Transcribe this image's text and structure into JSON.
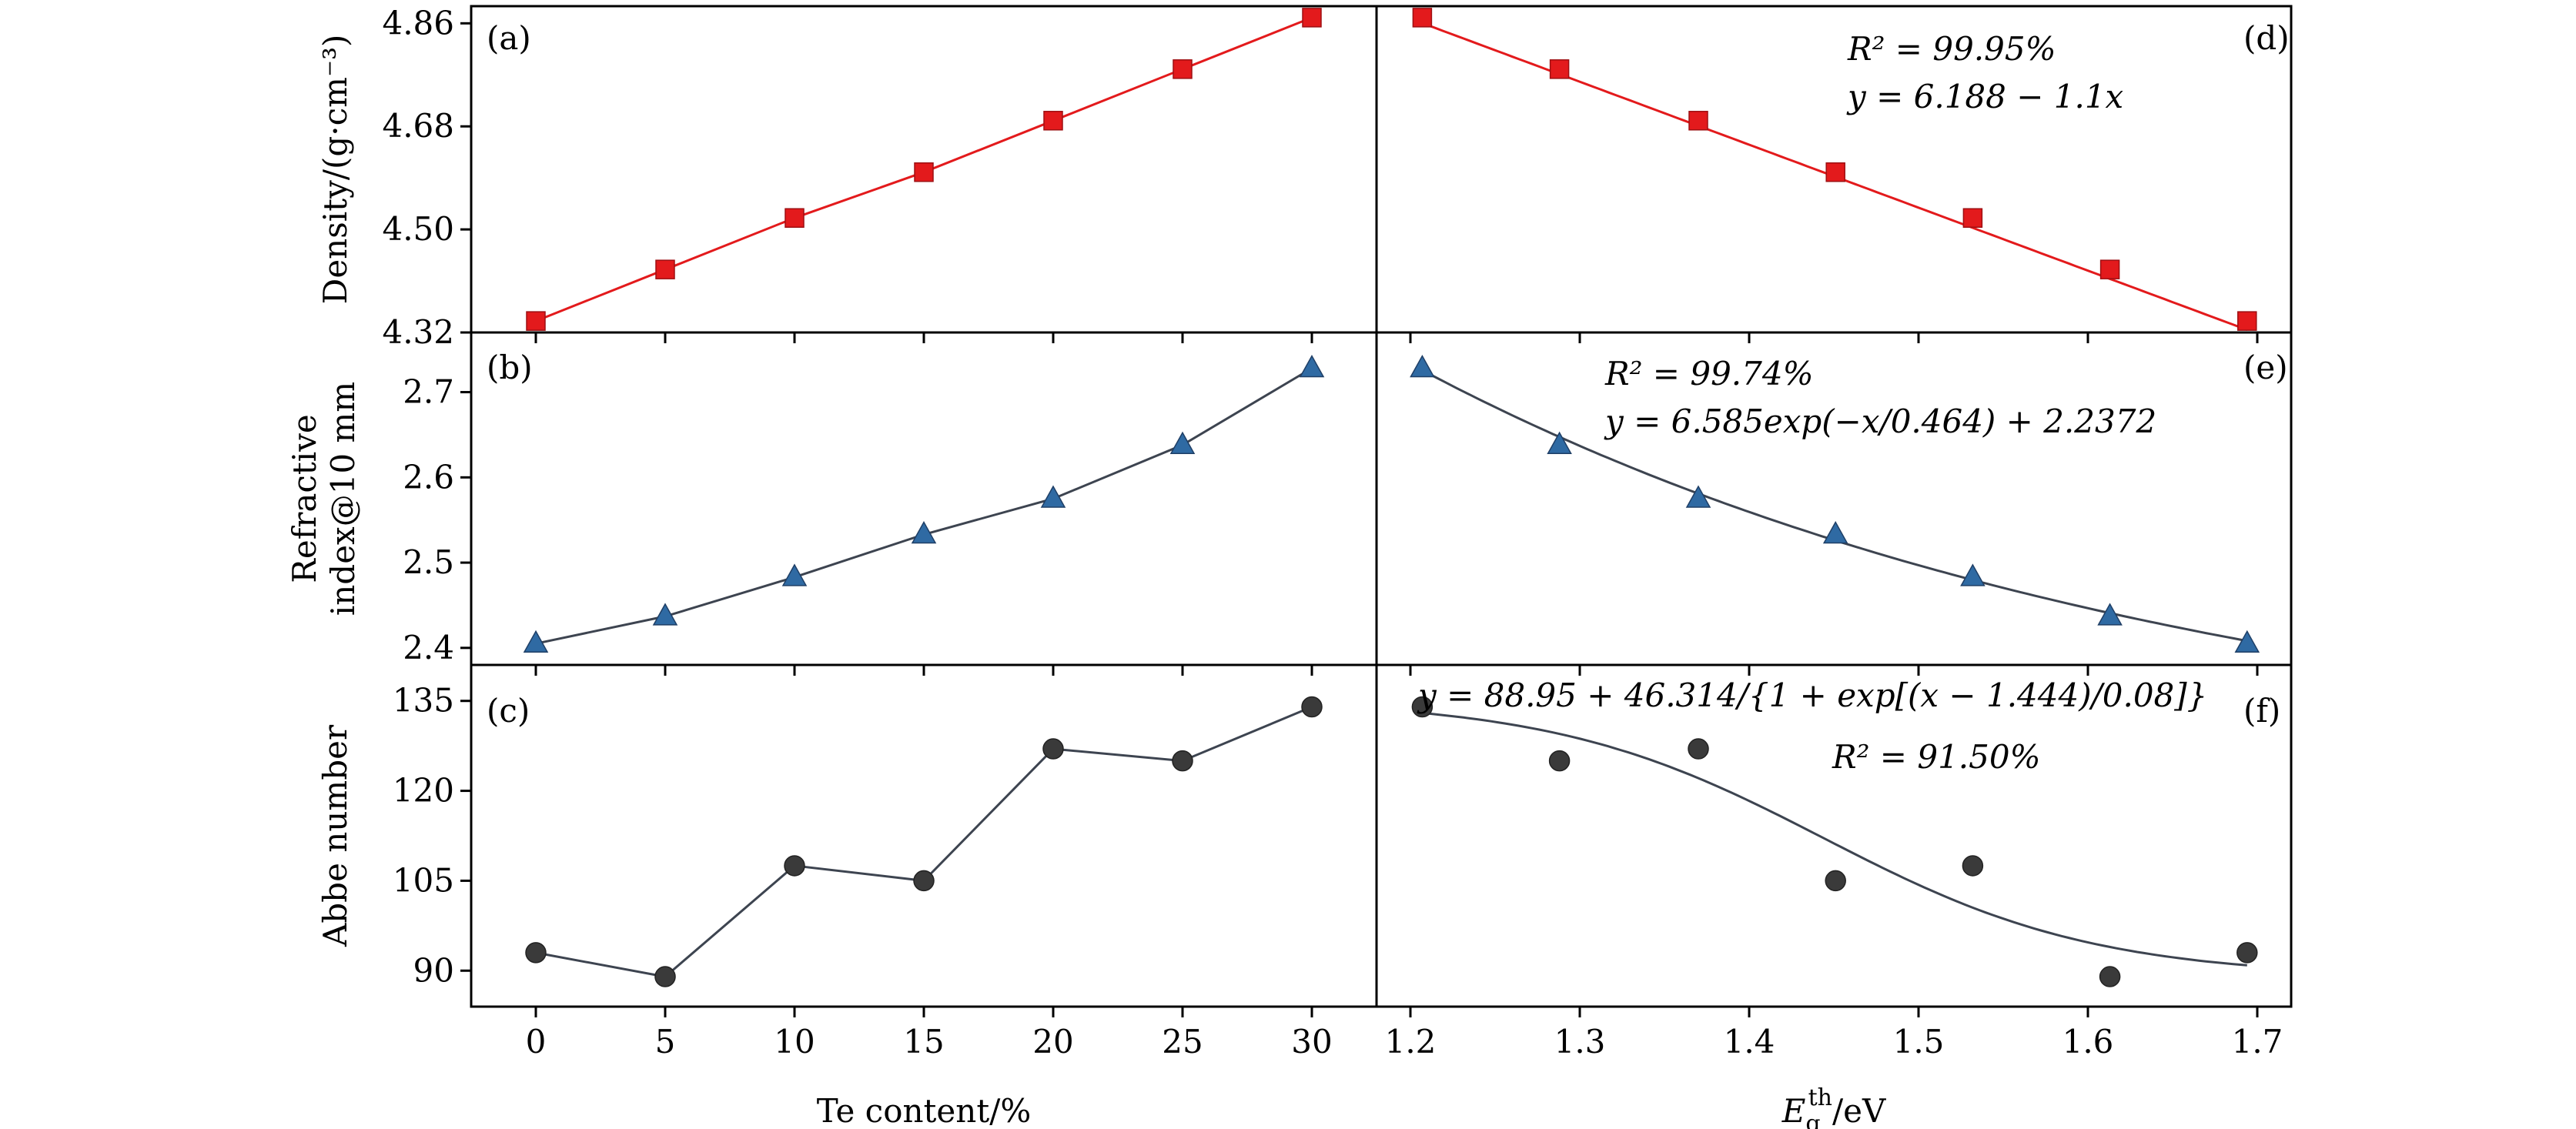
{
  "chart_data": [
    {
      "id": "a",
      "type": "line",
      "panel_label": "(a)",
      "ylabel": "Density/(g·cm⁻³)",
      "x": [
        0,
        5,
        10,
        15,
        20,
        25,
        30
      ],
      "series": [
        {
          "values": [
            4.34,
            4.43,
            4.52,
            4.6,
            4.69,
            4.78,
            4.87
          ],
          "marker": "square",
          "color": "#e31a1c"
        }
      ],
      "xlim": [
        -2.5,
        32.5
      ],
      "ylim": [
        4.32,
        4.89
      ],
      "yticks": [
        "4.32",
        "4.50",
        "4.68",
        "4.86"
      ],
      "xticks": [
        "0",
        "5",
        "10",
        "15",
        "20",
        "25",
        "30"
      ],
      "xlabel": "Te content/%"
    },
    {
      "id": "b",
      "type": "line",
      "panel_label": "(b)",
      "ylabel": "Refractive index@10 mm",
      "x": [
        0,
        5,
        10,
        15,
        20,
        25,
        30
      ],
      "series": [
        {
          "values": [
            2.405,
            2.437,
            2.483,
            2.533,
            2.575,
            2.638,
            2.728
          ],
          "marker": "triangle",
          "color": "#2f6aa3"
        }
      ],
      "xlim": [
        -2.5,
        32.5
      ],
      "ylim": [
        2.38,
        2.77
      ],
      "yticks": [
        "2.4",
        "2.5",
        "2.6",
        "2.7"
      ],
      "xticks": [
        "0",
        "5",
        "10",
        "15",
        "20",
        "25",
        "30"
      ],
      "xlabel": "Te content/%"
    },
    {
      "id": "c",
      "type": "line",
      "panel_label": "(c)",
      "ylabel": "Abbe number",
      "x": [
        0,
        5,
        10,
        15,
        20,
        25,
        30
      ],
      "series": [
        {
          "values": [
            93,
            89,
            107.5,
            105,
            127,
            125,
            134
          ],
          "marker": "circle",
          "color": "#3a3a3a"
        }
      ],
      "xlim": [
        -2.5,
        32.5
      ],
      "ylim": [
        84,
        141
      ],
      "yticks": [
        "90",
        "105",
        "120",
        "135"
      ],
      "xticks": [
        "0",
        "5",
        "10",
        "15",
        "20",
        "25",
        "30"
      ],
      "xlabel": "Te content/%"
    },
    {
      "id": "d",
      "type": "line",
      "panel_label": "(d)",
      "x": [
        1.207,
        1.288,
        1.37,
        1.451,
        1.532,
        1.613,
        1.694
      ],
      "series": [
        {
          "values": [
            4.87,
            4.78,
            4.69,
            4.6,
            4.52,
            4.43,
            4.34
          ],
          "marker": "square",
          "color": "#e31a1c"
        }
      ],
      "fit": {
        "type": "linear",
        "intercept": 6.188,
        "slope": -1.1
      },
      "annotations": [
        "R² = 99.95%",
        "y = 6.188 − 1.1x"
      ],
      "xlim": [
        1.18,
        1.72
      ],
      "ylim": [
        4.32,
        4.89
      ],
      "xticks": [
        "1.2",
        "1.3",
        "1.4",
        "1.5",
        "1.6",
        "1.7"
      ],
      "xlabel": "E_g^th/eV"
    },
    {
      "id": "e",
      "type": "line",
      "panel_label": "(e)",
      "x": [
        1.207,
        1.288,
        1.37,
        1.451,
        1.532,
        1.613,
        1.694
      ],
      "series": [
        {
          "values": [
            2.728,
            2.638,
            2.575,
            2.533,
            2.483,
            2.437,
            2.405
          ],
          "marker": "triangle",
          "color": "#2f6aa3"
        }
      ],
      "fit": {
        "type": "exp",
        "a": 6.585,
        "b": 0.464,
        "c": 2.2372
      },
      "annotations": [
        "R² = 99.74%",
        "y = 6.585exp(−x/0.464) + 2.2372"
      ],
      "xlim": [
        1.18,
        1.72
      ],
      "ylim": [
        2.38,
        2.77
      ],
      "xticks": [
        "1.2",
        "1.3",
        "1.4",
        "1.5",
        "1.6",
        "1.7"
      ],
      "xlabel": "E_g^th/eV"
    },
    {
      "id": "f",
      "type": "scatter",
      "panel_label": "(f)",
      "x": [
        1.207,
        1.288,
        1.37,
        1.451,
        1.532,
        1.613,
        1.694
      ],
      "series": [
        {
          "values": [
            134,
            125,
            127,
            105,
            107.5,
            89,
            93
          ],
          "marker": "circle",
          "color": "#3a3a3a"
        }
      ],
      "fit": {
        "type": "sigmoid",
        "a": 88.95,
        "b": 46.314,
        "x0": 1.444,
        "w": 0.08
      },
      "annotations": [
        "y = 88.95 + 46.314/{1 + exp[(x − 1.444)/0.08]}",
        "R² = 91.50%"
      ],
      "xlim": [
        1.18,
        1.72
      ],
      "ylim": [
        84,
        141
      ],
      "xticks": [
        "1.2",
        "1.3",
        "1.4",
        "1.5",
        "1.6",
        "1.7"
      ],
      "xlabel": "E_g^th/eV"
    }
  ]
}
